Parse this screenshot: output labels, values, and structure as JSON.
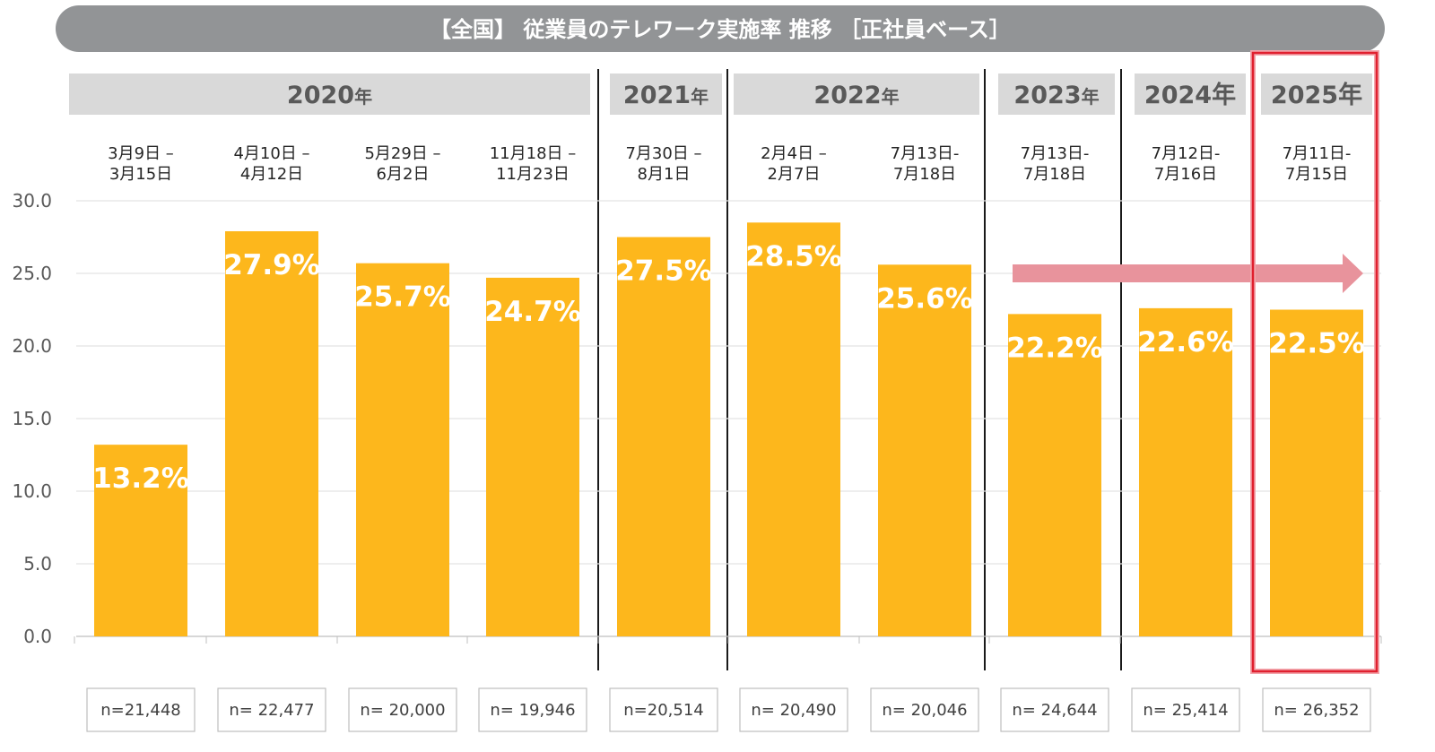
{
  "title": "【全国】 従業員のテレワーク実施率  推移 ［正社員ベース］",
  "colors": {
    "bar": "#FDB71C",
    "title_bg": "#929496",
    "year_bg": "#D9D9D9",
    "highlight": "#E0202F",
    "trend_arrow": "#E8939C"
  },
  "year_groups": [
    {
      "year": "2020",
      "suffix": "年"
    },
    {
      "year": "2021",
      "suffix": "年"
    },
    {
      "year": "2022",
      "suffix": "年"
    },
    {
      "year": "2023",
      "suffix": "年"
    },
    {
      "year": "2024年",
      "suffix": ""
    },
    {
      "year": "2025年",
      "suffix": ""
    }
  ],
  "chart_data": {
    "type": "bar",
    "ylim": [
      0,
      30
    ],
    "yticks": [
      "0.0",
      "5.0",
      "10.0",
      "15.0",
      "20.0",
      "25.0",
      "30.0"
    ],
    "grid": true,
    "categories": [
      [
        "3月9日 –",
        "3月15日"
      ],
      [
        "4月10日 –",
        "4月12日"
      ],
      [
        "5月29日 –",
        "6月2日"
      ],
      [
        "11月18日 –",
        "11月23日"
      ],
      [
        "7月30日 –",
        "8月1日"
      ],
      [
        "2月4日 –",
        "2月7日"
      ],
      [
        "7月13日-",
        "7月18日"
      ],
      [
        "7月13日-",
        "7月18日"
      ],
      [
        "7月12日-",
        "7月16日"
      ],
      [
        "7月11日-",
        "7月15日"
      ]
    ],
    "values": [
      13.2,
      27.9,
      25.7,
      24.7,
      27.5,
      28.5,
      25.6,
      22.2,
      22.6,
      22.5
    ],
    "value_labels": [
      "13.2%",
      "27.9%",
      "25.7%",
      "24.7%",
      "27.5%",
      "28.5%",
      "25.6%",
      "22.2%",
      "22.6%",
      "22.5%"
    ],
    "sample_sizes": [
      "n=21,448",
      "n= 22,477",
      "n= 20,000",
      "n= 19,946",
      "n=20,514",
      "n= 20,490",
      "n= 20,046",
      "n= 24,644",
      "n= 25,414",
      "n= 26,352"
    ],
    "highlight_index": 9
  }
}
